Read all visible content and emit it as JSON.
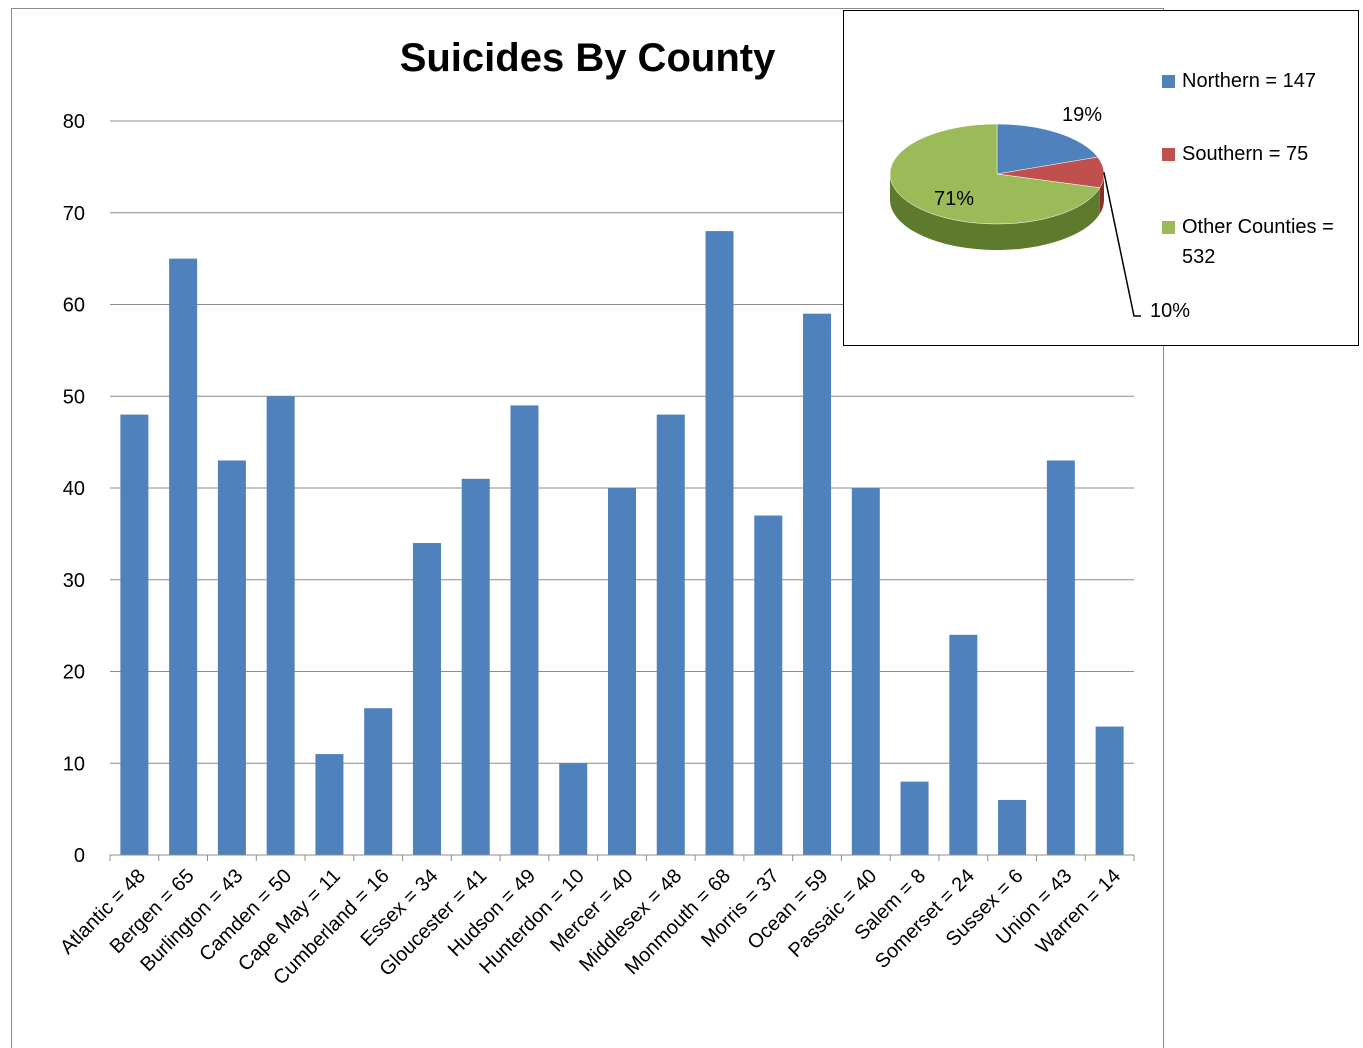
{
  "chart_data": [
    {
      "type": "bar",
      "title": "Suicides By County",
      "xlabel": "",
      "ylabel": "",
      "ylim": [
        0,
        80
      ],
      "yticks": [
        0,
        10,
        20,
        30,
        40,
        50,
        60,
        70,
        80
      ],
      "grid": true,
      "bar_color": "#4f81bd",
      "categories": [
        "Atlantic = 48",
        "Bergen = 65",
        "Burlington = 43",
        "Camden = 50",
        "Cape May = 11",
        "Cumberland = 16",
        "Essex = 34",
        "Gloucester = 41",
        "Hudson = 49",
        "Hunterdon = 10",
        "Mercer = 40",
        "Middlesex = 48",
        "Monmouth = 68",
        "Morris = 37",
        "Ocean = 59",
        "Passaic = 40",
        "Salem = 8",
        "Somerset = 24",
        "Sussex = 6",
        "Union = 43",
        "Warren = 14"
      ],
      "values": [
        48,
        65,
        43,
        50,
        11,
        16,
        34,
        41,
        49,
        10,
        40,
        48,
        68,
        37,
        59,
        40,
        8,
        24,
        6,
        43,
        14
      ]
    },
    {
      "type": "pie",
      "title": "",
      "style": "3d",
      "legend": "right",
      "slices": [
        {
          "label": "Northern = 147",
          "value": 147,
          "percent_label": "19%",
          "color": "#4f81bd",
          "side_color": "#2f5f9a"
        },
        {
          "label": "Southern = 75",
          "value": 75,
          "percent_label": "10%",
          "color": "#c0504d",
          "side_color": "#8a2e2c"
        },
        {
          "label": "Other Counties = 532",
          "value": 532,
          "percent_label": "71%",
          "color": "#9bbb59",
          "side_color": "#5e7a2c"
        }
      ]
    }
  ]
}
